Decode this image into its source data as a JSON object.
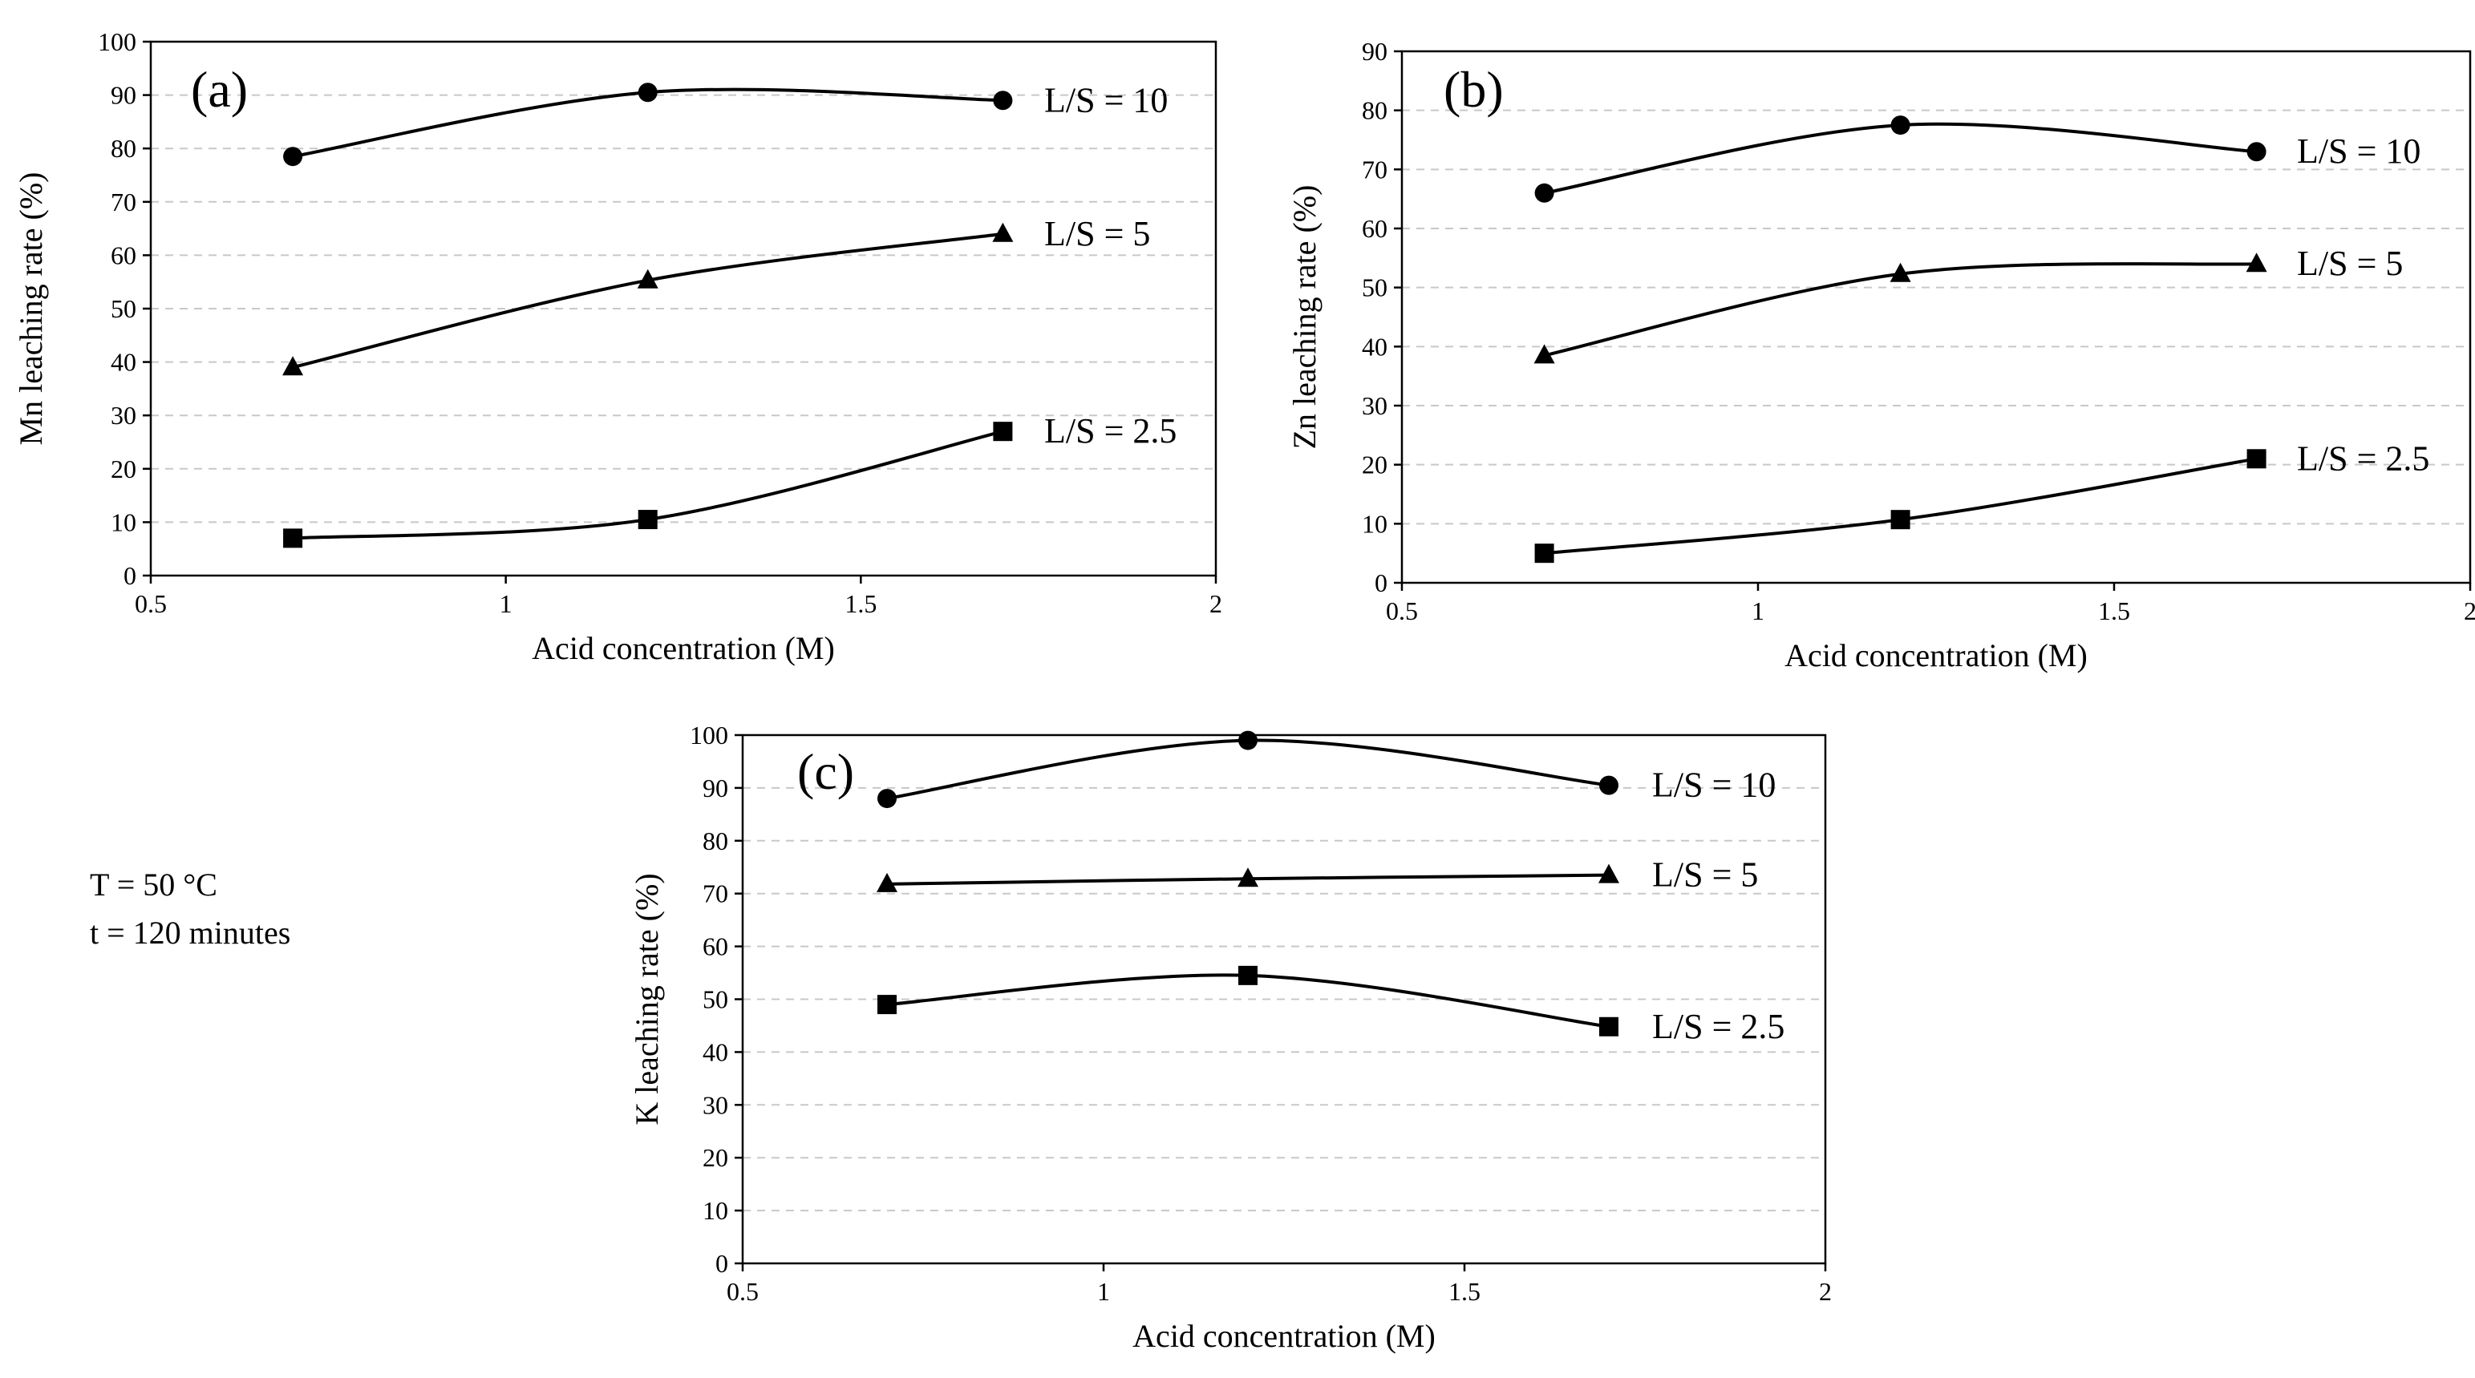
{
  "figure": {
    "conditions": {
      "temperature": "T = 50 °C",
      "time": "t = 120 minutes"
    }
  },
  "chart_data": [
    {
      "type": "line",
      "panel_label": "(a)",
      "title": "",
      "xlabel": "Acid concentration (M)",
      "ylabel": "Mn leaching rate (%)",
      "xlim": [
        0.5,
        2
      ],
      "ylim": [
        0,
        100
      ],
      "xticks": [
        0.5,
        1,
        1.5,
        2
      ],
      "xtick_labels": [
        "0.5",
        "1",
        "1.5",
        "2"
      ],
      "yticks": [
        0,
        10,
        20,
        30,
        40,
        50,
        60,
        70,
        80,
        90,
        100
      ],
      "ytick_labels": [
        "0",
        "10",
        "20",
        "30",
        "40",
        "50",
        "60",
        "70",
        "80",
        "90",
        "100"
      ],
      "grid": "horizontal dashed",
      "x": [
        0.7,
        1.2,
        1.7
      ],
      "series": [
        {
          "name": "L/S = 10",
          "marker": "circle",
          "values": [
            78.5,
            90.5,
            89
          ]
        },
        {
          "name": "L/S = 5",
          "marker": "triangle",
          "values": [
            39,
            55.3,
            64
          ]
        },
        {
          "name": "L/S = 2.5",
          "marker": "square",
          "values": [
            7,
            10.5,
            27
          ]
        }
      ]
    },
    {
      "type": "line",
      "panel_label": "(b)",
      "title": "",
      "xlabel": "Acid concentration (M)",
      "ylabel": "Zn leaching rate  (%)",
      "xlim": [
        0.5,
        2
      ],
      "ylim": [
        0,
        90
      ],
      "xticks": [
        0.5,
        1,
        1.5,
        2
      ],
      "xtick_labels": [
        "0.5",
        "1",
        "1.5",
        "2"
      ],
      "yticks": [
        0,
        10,
        20,
        30,
        40,
        50,
        60,
        70,
        80,
        90
      ],
      "ytick_labels": [
        "0",
        "10",
        "20",
        "30",
        "40",
        "50",
        "60",
        "70",
        "80",
        "90"
      ],
      "grid": "horizontal dashed",
      "x": [
        0.7,
        1.2,
        1.7
      ],
      "series": [
        {
          "name": "L/S = 10",
          "marker": "circle",
          "values": [
            66,
            77.5,
            73
          ]
        },
        {
          "name": "L/S = 5",
          "marker": "triangle",
          "values": [
            38.5,
            52.3,
            54
          ]
        },
        {
          "name": "L/S = 2.5",
          "marker": "square",
          "values": [
            5,
            10.7,
            21
          ]
        }
      ]
    },
    {
      "type": "line",
      "panel_label": "(c)",
      "title": "",
      "xlabel": "Acid concentration (M)",
      "ylabel": "K leaching rate  (%)",
      "xlim": [
        0.5,
        2
      ],
      "ylim": [
        0,
        100
      ],
      "xticks": [
        0.5,
        1,
        1.5,
        2
      ],
      "xtick_labels": [
        "0.5",
        "1",
        "1.5",
        "2"
      ],
      "yticks": [
        0,
        10,
        20,
        30,
        40,
        50,
        60,
        70,
        80,
        90,
        100
      ],
      "ytick_labels": [
        "0",
        "10",
        "20",
        "30",
        "40",
        "50",
        "60",
        "70",
        "80",
        "90",
        "100"
      ],
      "grid": "horizontal dashed",
      "x": [
        0.7,
        1.2,
        1.7
      ],
      "series": [
        {
          "name": "L/S = 10",
          "marker": "circle",
          "values": [
            88,
            99,
            90.5
          ]
        },
        {
          "name": "L/S = 5",
          "marker": "triangle",
          "values": [
            71.8,
            72.8,
            73.5
          ]
        },
        {
          "name": "L/S = 2.5",
          "marker": "square",
          "values": [
            49,
            54.5,
            44.8
          ]
        }
      ]
    }
  ]
}
